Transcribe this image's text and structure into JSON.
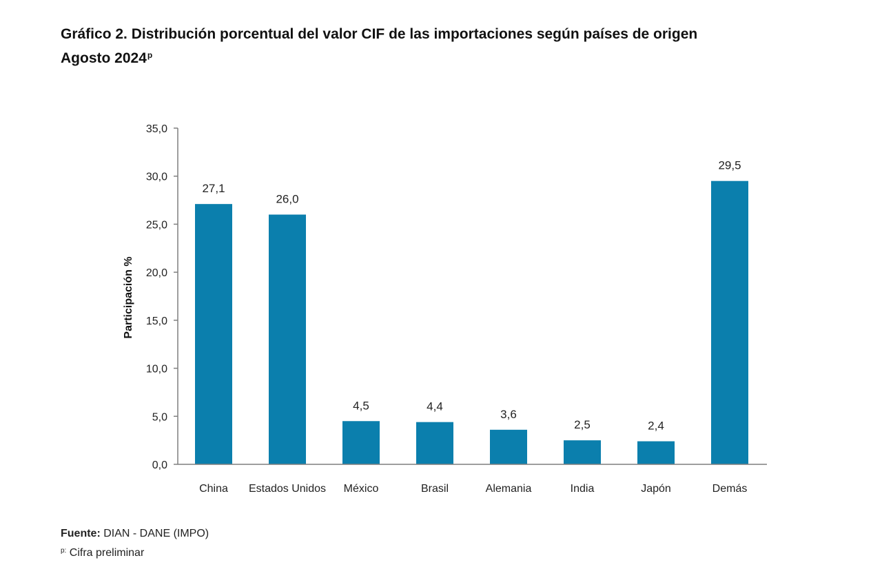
{
  "header": {
    "title": "Gráfico 2. Distribución porcentual del valor CIF de las importaciones según países de origen",
    "subtitle": "Agosto 2024",
    "subtitle_mark": "p"
  },
  "footer": {
    "source_label": "Fuente:",
    "source_text": "DIAN - DANE (IMPO)",
    "note_mark": "p:",
    "note_text": "Cifra preliminar"
  },
  "colors": {
    "bar": "#0b7fad",
    "axis": "#7f7f7f",
    "text": "#222222"
  },
  "chart_data": {
    "type": "bar",
    "title": "Gráfico 2. Distribución porcentual del valor CIF de las importaciones según países de origen",
    "subtitle": "Agosto 2024p",
    "xlabel": "",
    "ylabel": "Participación %",
    "ylim": [
      0,
      35
    ],
    "yticks": [
      "0,0",
      "5,0",
      "10,0",
      "15,0",
      "20,0",
      "25,0",
      "30,0",
      "35,0"
    ],
    "ytick_values": [
      0,
      5,
      10,
      15,
      20,
      25,
      30,
      35
    ],
    "grid": false,
    "legend": "none",
    "categories": [
      "China",
      "Estados Unidos",
      "México",
      "Brasil",
      "Alemania",
      "India",
      "Japón",
      "Demás"
    ],
    "values": [
      27.1,
      26.0,
      4.5,
      4.4,
      3.6,
      2.5,
      2.4,
      29.5
    ],
    "labels": [
      "27,1",
      "26,0",
      "4,5",
      "4,4",
      "3,6",
      "2,5",
      "2,4",
      "29,5"
    ]
  }
}
